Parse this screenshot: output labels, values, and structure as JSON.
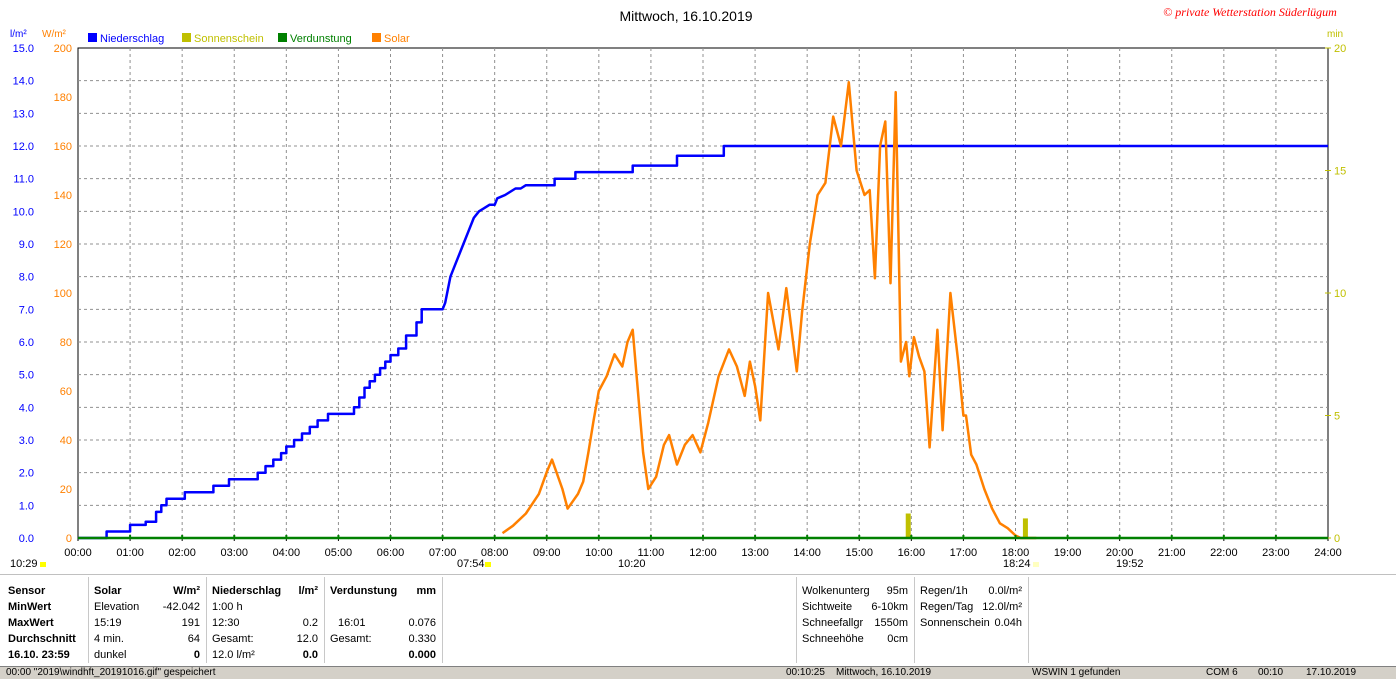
{
  "title": "Mittwoch, 16.10.2019",
  "watermark": "© private Wetterstation Süderlügum",
  "legend": [
    {
      "label": "Niederschlag",
      "color": "#0000ff"
    },
    {
      "label": "Sonnenschein",
      "color": "#c0c000"
    },
    {
      "label": "Verdunstung",
      "color": "#008000"
    },
    {
      "label": "Solar",
      "color": "#ff8000"
    }
  ],
  "axis_units": {
    "left1": "l/m²",
    "left2": "W/m²",
    "right": "min"
  },
  "sun_markers": {
    "sunrise_label": "07:54",
    "sunset_label": "18:24",
    "left_label": "10:29",
    "mid_label": "10:20",
    "right_label": "19:52"
  },
  "chart_data": {
    "type": "line",
    "x_ticks": [
      "00:00",
      "01:00",
      "02:00",
      "03:00",
      "04:00",
      "05:00",
      "06:00",
      "07:00",
      "08:00",
      "09:00",
      "10:00",
      "11:00",
      "12:00",
      "13:00",
      "14:00",
      "15:00",
      "16:00",
      "17:00",
      "18:00",
      "19:00",
      "20:00",
      "21:00",
      "22:00",
      "23:00",
      "24:00"
    ],
    "xlim": [
      0,
      24
    ],
    "y_left1": {
      "label": "l/m²",
      "ticks": [
        "0.0",
        "1.0",
        "2.0",
        "3.0",
        "4.0",
        "5.0",
        "6.0",
        "7.0",
        "8.0",
        "9.0",
        "10.0",
        "11.0",
        "12.0",
        "13.0",
        "14.0",
        "15.0"
      ],
      "ylim": [
        0,
        15
      ]
    },
    "y_left2": {
      "label": "W/m²",
      "ticks": [
        "0",
        "20",
        "40",
        "60",
        "80",
        "100",
        "120",
        "140",
        "160",
        "180",
        "200"
      ],
      "ylim": [
        0,
        200
      ]
    },
    "y_right": {
      "label": "min",
      "ticks": [
        "0",
        "5",
        "10",
        "15",
        "20"
      ],
      "ylim": [
        0,
        20
      ]
    },
    "grid": true,
    "legend_position": "top-left",
    "series": [
      {
        "name": "Niederschlag",
        "axis": "left1",
        "color": "#0000ff",
        "step": true,
        "x": [
          0.0,
          0.55,
          0.55,
          1.0,
          1.0,
          1.3,
          1.3,
          1.5,
          1.5,
          1.6,
          1.6,
          1.7,
          1.7,
          2.05,
          2.05,
          2.6,
          2.6,
          2.9,
          2.9,
          3.45,
          3.45,
          3.6,
          3.6,
          3.75,
          3.75,
          3.9,
          3.9,
          4.0,
          4.0,
          4.15,
          4.15,
          4.3,
          4.3,
          4.45,
          4.45,
          4.6,
          4.6,
          4.8,
          4.8,
          5.3,
          5.3,
          5.4,
          5.4,
          5.5,
          5.5,
          5.6,
          5.6,
          5.7,
          5.7,
          5.8,
          5.8,
          5.9,
          5.9,
          6.0,
          6.0,
          6.15,
          6.15,
          6.3,
          6.3,
          6.5,
          6.5,
          6.6,
          6.6,
          7.0,
          7.05,
          7.1,
          7.15,
          7.25,
          7.4,
          7.5,
          7.6,
          7.7,
          7.8,
          7.9,
          8.0,
          8.05,
          8.2,
          8.4,
          8.5,
          8.6,
          8.8,
          9.15,
          9.15,
          9.55,
          9.55,
          10.65,
          10.65,
          11.5,
          11.5,
          12.4,
          12.4,
          24.0
        ],
        "y": [
          0.0,
          0.0,
          0.2,
          0.2,
          0.4,
          0.4,
          0.5,
          0.5,
          0.8,
          0.8,
          1.0,
          1.0,
          1.2,
          1.2,
          1.4,
          1.4,
          1.6,
          1.6,
          1.8,
          1.8,
          2.0,
          2.0,
          2.2,
          2.2,
          2.4,
          2.4,
          2.6,
          2.6,
          2.8,
          2.8,
          3.0,
          3.0,
          3.2,
          3.2,
          3.4,
          3.4,
          3.6,
          3.6,
          3.8,
          3.8,
          4.0,
          4.0,
          4.3,
          4.3,
          4.6,
          4.6,
          4.8,
          4.8,
          5.0,
          5.0,
          5.2,
          5.2,
          5.4,
          5.4,
          5.6,
          5.6,
          5.8,
          5.8,
          6.2,
          6.2,
          6.6,
          6.6,
          7.0,
          7.0,
          7.2,
          7.6,
          8.0,
          8.4,
          9.0,
          9.4,
          9.8,
          10.0,
          10.1,
          10.2,
          10.2,
          10.4,
          10.5,
          10.7,
          10.7,
          10.8,
          10.8,
          10.8,
          11.0,
          11.0,
          11.2,
          11.2,
          11.4,
          11.4,
          11.7,
          11.7,
          12.0,
          12.0
        ]
      },
      {
        "name": "Solar",
        "axis": "left2",
        "color": "#ff8000",
        "x": [
          8.15,
          8.35,
          8.6,
          8.85,
          9.0,
          9.1,
          9.2,
          9.3,
          9.4,
          9.5,
          9.6,
          9.7,
          9.8,
          9.9,
          10.0,
          10.15,
          10.3,
          10.45,
          10.55,
          10.65,
          10.75,
          10.85,
          10.95,
          11.1,
          11.25,
          11.35,
          11.5,
          11.65,
          11.8,
          11.95,
          12.1,
          12.3,
          12.5,
          12.65,
          12.8,
          12.9,
          13.0,
          13.1,
          13.25,
          13.45,
          13.6,
          13.8,
          13.9,
          14.05,
          14.2,
          14.35,
          14.5,
          14.65,
          14.8,
          14.95,
          15.1,
          15.2,
          15.3,
          15.4,
          15.5,
          15.6,
          15.7,
          15.8,
          15.9,
          15.96,
          16.05,
          16.15,
          16.25,
          16.35,
          16.5,
          16.6,
          16.75,
          16.9,
          17.0,
          17.05,
          17.15,
          17.25,
          17.4,
          17.55,
          17.7,
          17.85,
          18.0,
          18.1,
          18.2,
          18.3,
          18.4
        ],
        "y": [
          2,
          5,
          10,
          18,
          27,
          32,
          26,
          20,
          12,
          15,
          18,
          23,
          35,
          48,
          60,
          66,
          75,
          70,
          80,
          85,
          60,
          35,
          20,
          25,
          38,
          42,
          30,
          38,
          42,
          35,
          47,
          66,
          77,
          70,
          58,
          72,
          62,
          48,
          100,
          77,
          102,
          68,
          92,
          120,
          140,
          145,
          172,
          160,
          186,
          150,
          140,
          142,
          106,
          160,
          170,
          104,
          182,
          72,
          80,
          66,
          82,
          74,
          68,
          37,
          85,
          44,
          100,
          72,
          50,
          50,
          34,
          30,
          20,
          12,
          6,
          4,
          1,
          0,
          0,
          0,
          0
        ]
      },
      {
        "name": "Sonnenschein",
        "axis": "right",
        "color": "#c0c000",
        "type": "bar",
        "x": [
          15.95,
          18.2
        ],
        "y": [
          1.0,
          0.8
        ]
      },
      {
        "name": "Verdunstung",
        "axis": "left1",
        "color": "#008000",
        "x": [
          0,
          24
        ],
        "y": [
          0.0,
          0.0
        ]
      }
    ]
  },
  "table": {
    "col_sensor": [
      "Sensor",
      "MinWert",
      "MaxWert",
      "Durchschnitt",
      "16.10. 23:59"
    ],
    "solar": {
      "header": "Solar",
      "unit": "W/m²",
      "rows": [
        {
          "l": "Elevation",
          "v": "-42.042"
        },
        {
          "l": "15:19",
          "v": "191"
        },
        {
          "l": "4 min.",
          "v": "64"
        },
        {
          "l": "dunkel",
          "v": "0"
        }
      ]
    },
    "nieder": {
      "header": "Niederschlag",
      "unit": "l/m²",
      "rows": [
        {
          "l": "1:00 h",
          "v": ""
        },
        {
          "l": "12:30",
          "v": "0.2"
        },
        {
          "l": "Gesamt:",
          "v": "12.0"
        },
        {
          "l": "12.0 l/m²",
          "v": "0.0"
        }
      ]
    },
    "verd": {
      "header": "Verdunstung",
      "unit": "mm",
      "rows": [
        {
          "l": "",
          "v": ""
        },
        {
          "l": "16:01",
          "v": "0.076"
        },
        {
          "l": "Gesamt:",
          "v": "0.330"
        },
        {
          "l": "",
          "v": "0.000"
        }
      ]
    },
    "wolken": [
      {
        "l": "Wolkenunterg",
        "v": "95m"
      },
      {
        "l": "Sichtweite",
        "v": "6-10km"
      },
      {
        "l": "Schneefallgr",
        "v": "1550m"
      },
      {
        "l": "Schneehöhe",
        "v": "0cm"
      }
    ],
    "regen": [
      {
        "l": "Regen/1h",
        "v": "0.0l/m²"
      },
      {
        "l": "Regen/Tag",
        "v": "12.0l/m²"
      },
      {
        "l": "Sonnenschein",
        "v": "0.04h"
      }
    ]
  },
  "status": {
    "left": "00:00  \"2019\\windhft_20191016.gif\" gespeichert",
    "time": "00:10:25",
    "date": "Mittwoch, 16.10.2019",
    "msg": "WSWIN 1 gefunden",
    "com": "COM 6",
    "clock": "00:10",
    "today": "17.10.2019"
  }
}
